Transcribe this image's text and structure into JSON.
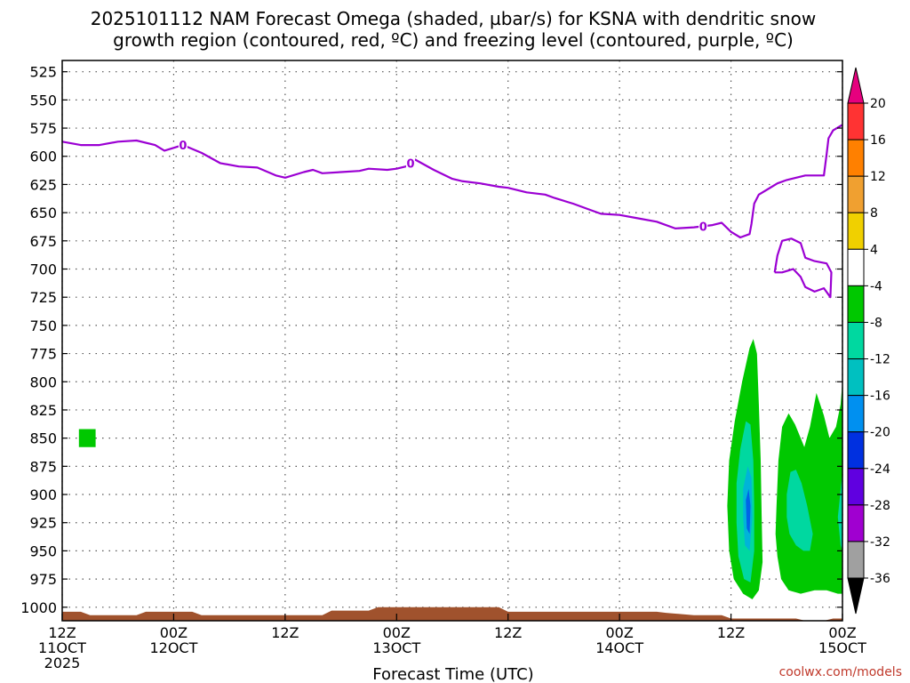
{
  "chart_data": {
    "type": "heatmap",
    "title_lines": [
      "2025101112 NAM Forecast Omega (shaded, µbar/s) for KSNA with dendritic snow",
      "growth region (contoured, red, ºC) and freezing level (contoured, purple, ºC)"
    ],
    "xlabel": "Forecast Time (UTC)",
    "credit": "coolwx.com/models",
    "x_hours_range": [
      0,
      84
    ],
    "x_ticks": [
      {
        "hour": 0,
        "line1": "12Z",
        "line2": "11OCT",
        "line3": "2025"
      },
      {
        "hour": 12,
        "line1": "00Z",
        "line2": "12OCT"
      },
      {
        "hour": 24,
        "line1": "12Z"
      },
      {
        "hour": 36,
        "line1": "00Z",
        "line2": "13OCT"
      },
      {
        "hour": 48,
        "line1": "12Z"
      },
      {
        "hour": 60,
        "line1": "00Z",
        "line2": "14OCT"
      },
      {
        "hour": 72,
        "line1": "12Z"
      },
      {
        "hour": 84,
        "line1": "00Z",
        "line2": "15OCT"
      }
    ],
    "y_range_hpa": [
      515,
      1012
    ],
    "y_ticks": [
      525,
      550,
      575,
      600,
      625,
      650,
      675,
      700,
      725,
      750,
      775,
      800,
      825,
      850,
      875,
      900,
      925,
      950,
      975,
      1000
    ],
    "grid": true,
    "freezing_level": {
      "color": "#9b00d3",
      "label": "0",
      "label_hours": [
        13,
        37.5,
        69
      ],
      "points": [
        [
          0,
          587
        ],
        [
          2,
          590
        ],
        [
          4,
          590
        ],
        [
          6,
          587
        ],
        [
          8,
          586
        ],
        [
          10,
          590
        ],
        [
          11,
          595
        ],
        [
          13,
          590
        ],
        [
          15,
          597
        ],
        [
          17,
          606
        ],
        [
          19,
          609
        ],
        [
          21,
          610
        ],
        [
          23,
          617
        ],
        [
          24,
          619
        ],
        [
          26,
          614
        ],
        [
          27,
          612
        ],
        [
          28,
          615
        ],
        [
          30,
          614
        ],
        [
          32,
          613
        ],
        [
          33,
          611
        ],
        [
          35,
          612
        ],
        [
          36,
          611
        ],
        [
          37,
          609
        ],
        [
          38,
          603
        ],
        [
          40,
          612
        ],
        [
          42,
          620
        ],
        [
          43,
          622
        ],
        [
          45,
          624
        ],
        [
          47,
          627
        ],
        [
          48,
          628
        ],
        [
          50,
          632
        ],
        [
          52,
          634
        ],
        [
          53,
          637
        ],
        [
          55,
          642
        ],
        [
          57,
          648
        ],
        [
          58,
          651
        ],
        [
          60,
          652
        ],
        [
          62,
          655
        ],
        [
          64,
          658
        ],
        [
          66,
          664
        ],
        [
          68,
          663
        ],
        [
          70,
          661
        ],
        [
          71,
          659
        ],
        [
          72,
          667
        ],
        [
          73,
          672
        ],
        [
          74,
          669
        ],
        [
          74.2,
          660
        ],
        [
          74.5,
          642
        ],
        [
          75,
          634
        ],
        [
          76,
          629
        ],
        [
          77,
          624
        ],
        [
          78,
          621
        ],
        [
          80,
          617
        ],
        [
          82,
          617
        ],
        [
          82.3,
          598
        ],
        [
          82.5,
          584
        ],
        [
          83,
          577
        ],
        [
          84,
          572
        ],
        [
          85,
          567
        ]
      ],
      "islands": [
        [
          [
            76.7,
            703
          ],
          [
            77,
            688
          ],
          [
            77.5,
            675
          ],
          [
            78.5,
            673
          ],
          [
            79.5,
            677
          ],
          [
            80,
            690
          ],
          [
            81,
            693
          ],
          [
            82.3,
            695
          ],
          [
            82.8,
            703
          ],
          [
            82.7,
            725
          ],
          [
            82,
            717
          ],
          [
            81,
            720
          ],
          [
            80,
            716
          ],
          [
            79.5,
            707
          ],
          [
            78.7,
            700
          ],
          [
            77.5,
            703
          ],
          [
            76.7,
            703
          ]
        ],
        [
          [
            84.7,
            734
          ],
          [
            85,
            720
          ],
          [
            85,
            742
          ],
          [
            84.7,
            734
          ]
        ]
      ]
    },
    "omega_regions": [
      {
        "level": -8,
        "color": "#00c800",
        "points": [
          [
            1.8,
            842
          ],
          [
            3.6,
            842
          ],
          [
            3.6,
            858
          ],
          [
            1.8,
            858
          ]
        ]
      },
      {
        "level": -8,
        "color": "#00c800",
        "points": [
          [
            71.8,
            870
          ],
          [
            72.4,
            835
          ],
          [
            73.2,
            800
          ],
          [
            74.0,
            770
          ],
          [
            74.4,
            762
          ],
          [
            74.8,
            775
          ],
          [
            75.0,
            820
          ],
          [
            75.2,
            870
          ],
          [
            75.3,
            920
          ],
          [
            75.4,
            960
          ],
          [
            75.0,
            985
          ],
          [
            74.3,
            993
          ],
          [
            73.3,
            988
          ],
          [
            72.3,
            975
          ],
          [
            71.8,
            950
          ],
          [
            71.6,
            910
          ]
        ]
      },
      {
        "level": -12,
        "color": "#00d8a0",
        "points": [
          [
            72.6,
            890
          ],
          [
            73.0,
            860
          ],
          [
            73.6,
            835
          ],
          [
            74.1,
            838
          ],
          [
            74.4,
            870
          ],
          [
            74.5,
            910
          ],
          [
            74.5,
            950
          ],
          [
            74.1,
            978
          ],
          [
            73.4,
            975
          ],
          [
            72.8,
            955
          ],
          [
            72.6,
            925
          ]
        ]
      },
      {
        "level": -16,
        "color": "#00b4d8",
        "points": [
          [
            73.3,
            895
          ],
          [
            73.8,
            875
          ],
          [
            74.2,
            885
          ],
          [
            74.3,
            920
          ],
          [
            74.0,
            950
          ],
          [
            73.5,
            945
          ],
          [
            73.3,
            920
          ]
        ]
      },
      {
        "level": -20,
        "color": "#0064e6",
        "points": [
          [
            73.6,
            905
          ],
          [
            73.9,
            895
          ],
          [
            74.1,
            910
          ],
          [
            74.0,
            935
          ],
          [
            73.7,
            930
          ]
        ]
      },
      {
        "level": -8,
        "color": "#00c800",
        "points": [
          [
            76.9,
            910
          ],
          [
            77.1,
            870
          ],
          [
            77.5,
            840
          ],
          [
            78.2,
            828
          ],
          [
            78.9,
            838
          ],
          [
            79.5,
            850
          ],
          [
            79.9,
            858
          ],
          [
            80.5,
            840
          ],
          [
            81.2,
            810
          ],
          [
            82.0,
            830
          ],
          [
            82.6,
            850
          ],
          [
            83.3,
            840
          ],
          [
            83.8,
            820
          ],
          [
            84.3,
            800
          ],
          [
            84.6,
            780
          ],
          [
            85,
            780
          ],
          [
            85,
            988
          ],
          [
            83.5,
            988
          ],
          [
            82.3,
            985
          ],
          [
            81.0,
            985
          ],
          [
            79.5,
            988
          ],
          [
            78.2,
            985
          ],
          [
            77.4,
            975
          ],
          [
            77.0,
            955
          ],
          [
            76.8,
            935
          ]
        ]
      },
      {
        "level": -12,
        "color": "#00d8a0",
        "points": [
          [
            78.0,
            900
          ],
          [
            78.4,
            880
          ],
          [
            79.0,
            878
          ],
          [
            79.6,
            890
          ],
          [
            80.2,
            910
          ],
          [
            80.8,
            935
          ],
          [
            80.5,
            950
          ],
          [
            79.8,
            950
          ],
          [
            79.0,
            945
          ],
          [
            78.3,
            935
          ],
          [
            78.0,
            920
          ]
        ]
      },
      {
        "level": -12,
        "color": "#00d8a0",
        "points": [
          [
            83.5,
            920
          ],
          [
            84.0,
            880
          ],
          [
            84.5,
            862
          ],
          [
            85,
            860
          ],
          [
            85,
            940
          ],
          [
            84.4,
            950
          ],
          [
            83.8,
            945
          ]
        ]
      }
    ],
    "terrain": {
      "color": "#a0522d",
      "points": [
        [
          0,
          1004
        ],
        [
          2,
          1004
        ],
        [
          3,
          1007
        ],
        [
          8,
          1007
        ],
        [
          9,
          1004
        ],
        [
          14,
          1004
        ],
        [
          15,
          1007
        ],
        [
          28,
          1007
        ],
        [
          29,
          1003
        ],
        [
          33,
          1003
        ],
        [
          34,
          1000
        ],
        [
          47,
          1000
        ],
        [
          48,
          1004
        ],
        [
          64,
          1004
        ],
        [
          65,
          1005
        ],
        [
          68,
          1007
        ],
        [
          71,
          1007
        ],
        [
          72,
          1010
        ],
        [
          79,
          1010
        ],
        [
          80,
          1012
        ],
        [
          82,
          1012
        ],
        [
          83,
          1010
        ],
        [
          85,
          1010
        ]
      ]
    },
    "colorbar": {
      "arrow_top_color": "#e6007e",
      "arrow_bottom_color": "#000000",
      "bins": [
        {
          "color": "#ff3333"
        },
        {
          "color": "#ff8000"
        },
        {
          "color": "#f0a030"
        },
        {
          "color": "#f0d000"
        },
        {
          "color": "#ffffff"
        },
        {
          "color": "#00c800"
        },
        {
          "color": "#00d8a0"
        },
        {
          "color": "#00c0c0"
        },
        {
          "color": "#0090f0"
        },
        {
          "color": "#0030e0"
        },
        {
          "color": "#6000e0"
        },
        {
          "color": "#a000d0"
        },
        {
          "color": "#a0a0a0"
        }
      ],
      "labels": [
        "20",
        "16",
        "12",
        "8",
        "4",
        "-4",
        "-8",
        "-12",
        "-16",
        "-20",
        "-24",
        "-28",
        "-32",
        "-36"
      ]
    }
  }
}
